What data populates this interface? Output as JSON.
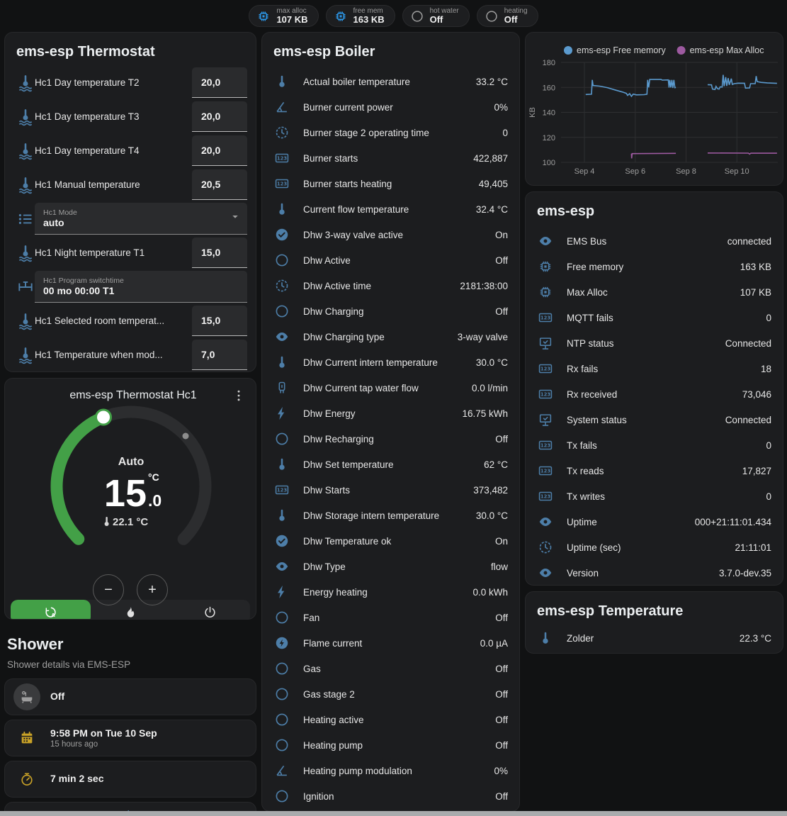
{
  "colors": {
    "icon_blue": "#4d7ea8",
    "chip_blue": "#2d9cf0",
    "icon_grey": "#9e9e9e",
    "amber": "#c9a227",
    "green": "#43a047",
    "chart_blue": "#5b9ace",
    "chart_purple": "#9d5aa0"
  },
  "topbar": {
    "badges": [
      {
        "icon": "chip",
        "icon_color": "#2d9cf0",
        "label": "max alloc",
        "value": "107 KB"
      },
      {
        "icon": "chip",
        "icon_color": "#2d9cf0",
        "label": "free mem",
        "value": "163 KB"
      },
      {
        "icon": "circle",
        "icon_color": "#9e9e9e",
        "label": "hot water",
        "value": "Off"
      },
      {
        "icon": "circle",
        "icon_color": "#9e9e9e",
        "label": "heating",
        "value": "Off"
      }
    ]
  },
  "thermostat_card": {
    "title": "ems-esp Thermostat",
    "rows": [
      {
        "type": "number",
        "icon": "thermometer-waves",
        "label": "Hc1 Day temperature T2",
        "value": "20,0"
      },
      {
        "type": "number",
        "icon": "thermometer-waves",
        "label": "Hc1 Day temperature T3",
        "value": "20,0"
      },
      {
        "type": "number",
        "icon": "thermometer-waves",
        "label": "Hc1 Day temperature T4",
        "value": "20,0"
      },
      {
        "type": "number",
        "icon": "thermometer-waves",
        "label": "Hc1 Manual temperature",
        "value": "20,5"
      },
      {
        "type": "select",
        "icon": "list",
        "label": "Hc1 Mode",
        "value": "auto"
      },
      {
        "type": "number",
        "icon": "thermometer-waves",
        "label": "Hc1 Night temperature T1",
        "value": "15,0"
      },
      {
        "type": "textfield",
        "icon": "valve",
        "label": "Hc1 Program switchtime",
        "value": "00 mo 00:00 T1"
      },
      {
        "type": "number",
        "icon": "thermometer-waves",
        "label": "Hc1 Selected room temperat...",
        "value": "15,0"
      },
      {
        "type": "number",
        "icon": "thermometer-waves",
        "label": "Hc1 Temperature when mod...",
        "value": "7,0"
      }
    ]
  },
  "hc1_card": {
    "title": "ems-esp Thermostat Hc1",
    "mode_label": "Auto",
    "target_int": "15",
    "target_dec": ".0",
    "target_unit": "°C",
    "current_temp": "22.1 °C",
    "minus_label": "−",
    "plus_label": "+",
    "modes": [
      {
        "name": "auto",
        "icon": "auto",
        "active": true
      },
      {
        "name": "heat",
        "icon": "fire",
        "active": false
      },
      {
        "name": "off",
        "icon": "power",
        "active": false
      }
    ]
  },
  "shower": {
    "title": "Shower",
    "subtitle": "Shower details via EMS-ESP",
    "entries": [
      {
        "icon": "bathtub",
        "icon_color": "#9e9e9e",
        "circle_bg": "#3a3b3d",
        "primary": "Off",
        "secondary": ""
      },
      {
        "icon": "calendar",
        "icon_color": "#c9a227",
        "circle_bg": "",
        "primary": "9:58 PM on Tue 10 Sep",
        "secondary": "15 hours ago"
      },
      {
        "icon": "timer",
        "icon_color": "#c9a227",
        "circle_bg": "",
        "primary": "7 min 2 sec",
        "secondary": ""
      }
    ],
    "partial_icon": "snowflake-alert"
  },
  "boiler_card": {
    "title": "ems-esp Boiler",
    "rows": [
      {
        "icon": "thermometer",
        "label": "Actual boiler temperature",
        "value": "33.2 °C"
      },
      {
        "icon": "angle",
        "label": "Burner current power",
        "value": "0%"
      },
      {
        "icon": "clock",
        "label": "Burner stage 2 operating time",
        "value": "0"
      },
      {
        "icon": "counter",
        "label": "Burner starts",
        "value": "422,887"
      },
      {
        "icon": "counter",
        "label": "Burner starts heating",
        "value": "49,405"
      },
      {
        "icon": "thermometer",
        "label": "Current flow temperature",
        "value": "32.4 °C"
      },
      {
        "icon": "check-circle",
        "label": "Dhw 3-way valve active",
        "value": "On"
      },
      {
        "icon": "circle",
        "label": "Dhw Active",
        "value": "Off"
      },
      {
        "icon": "clock",
        "label": "Dhw Active time",
        "value": "2181:38:00"
      },
      {
        "icon": "circle",
        "label": "Dhw Charging",
        "value": "Off"
      },
      {
        "icon": "eye",
        "label": "Dhw Charging type",
        "value": "3-way valve"
      },
      {
        "icon": "thermometer",
        "label": "Dhw Current intern temperature",
        "value": "30.0 °C"
      },
      {
        "icon": "pump",
        "label": "Dhw Current tap water flow",
        "value": "0.0 l/min"
      },
      {
        "icon": "flash",
        "label": "Dhw Energy",
        "value": "16.75 kWh"
      },
      {
        "icon": "circle",
        "label": "Dhw Recharging",
        "value": "Off"
      },
      {
        "icon": "thermometer",
        "label": "Dhw Set temperature",
        "value": "62 °C"
      },
      {
        "icon": "counter",
        "label": "Dhw Starts",
        "value": "373,482"
      },
      {
        "icon": "thermometer",
        "label": "Dhw Storage intern temperature",
        "value": "30.0 °C"
      },
      {
        "icon": "check-circle",
        "label": "Dhw Temperature ok",
        "value": "On"
      },
      {
        "icon": "eye",
        "label": "Dhw Type",
        "value": "flow"
      },
      {
        "icon": "flash",
        "label": "Energy heating",
        "value": "0.0 kWh"
      },
      {
        "icon": "circle",
        "label": "Fan",
        "value": "Off"
      },
      {
        "icon": "flash-circle",
        "label": "Flame current",
        "value": "0.0 µA"
      },
      {
        "icon": "circle",
        "label": "Gas",
        "value": "Off"
      },
      {
        "icon": "circle",
        "label": "Gas stage 2",
        "value": "Off"
      },
      {
        "icon": "circle",
        "label": "Heating active",
        "value": "Off"
      },
      {
        "icon": "circle",
        "label": "Heating pump",
        "value": "Off"
      },
      {
        "icon": "angle",
        "label": "Heating pump modulation",
        "value": "0%"
      },
      {
        "icon": "circle",
        "label": "Ignition",
        "value": "Off"
      }
    ]
  },
  "chart_data": {
    "type": "line",
    "title": "",
    "ylabel": "KB",
    "ylim": [
      100,
      180
    ],
    "yticks": [
      100,
      120,
      140,
      160,
      180
    ],
    "xlim": [
      3.08,
      11.61
    ],
    "xticks": [
      {
        "x": 4,
        "label": "Sep 4"
      },
      {
        "x": 6,
        "label": "Sep 6"
      },
      {
        "x": 8,
        "label": "Sep 8"
      },
      {
        "x": 10,
        "label": "Sep 10"
      }
    ],
    "grid": true,
    "legend_position": "top",
    "series": [
      {
        "name": "ems-esp Free memory",
        "color": "#5b9ace",
        "segments": [
          [
            [
              4.05,
              154.3
            ],
            [
              4.28,
              154.5
            ],
            [
              4.31,
              166
            ],
            [
              4.34,
              161.5
            ],
            [
              4.6,
              161
            ],
            [
              4.9,
              159.8
            ],
            [
              5.2,
              158
            ],
            [
              5.5,
              156.3
            ],
            [
              5.65,
              155.2
            ],
            [
              5.7,
              153.6
            ],
            [
              5.78,
              155
            ],
            [
              5.85,
              152.8
            ],
            [
              5.92,
              154.6
            ],
            [
              6.05,
              154
            ],
            [
              6.35,
              154.2
            ],
            [
              6.46,
              154.5
            ],
            [
              6.49,
              166
            ],
            [
              6.53,
              160
            ],
            [
              6.57,
              166.3
            ],
            [
              7.02,
              166.3
            ],
            [
              7.06,
              165.8
            ],
            [
              7.3,
              166
            ],
            [
              7.33,
              159.8
            ],
            [
              7.36,
              166
            ],
            [
              7.4,
              159.9
            ],
            [
              7.44,
              166
            ],
            [
              7.48,
              159.6
            ],
            [
              7.52,
              166
            ],
            [
              7.56,
              159.8
            ],
            [
              7.6,
              160
            ]
          ],
          [
            [
              8.85,
              162.2
            ],
            [
              9.0,
              162
            ],
            [
              9.04,
              158.6
            ],
            [
              9.14,
              158.3
            ],
            [
              9.18,
              160.8
            ],
            [
              9.24,
              158.9
            ],
            [
              9.3,
              158.6
            ],
            [
              9.34,
              160.4
            ],
            [
              9.42,
              160.2
            ],
            [
              9.46,
              170
            ],
            [
              9.5,
              161
            ],
            [
              9.56,
              168.2
            ],
            [
              9.6,
              161.2
            ],
            [
              9.66,
              167.4
            ],
            [
              9.7,
              162
            ],
            [
              9.78,
              167
            ],
            [
              9.82,
              162.4
            ],
            [
              9.9,
              163
            ],
            [
              10.05,
              163.4
            ],
            [
              10.3,
              163.3
            ],
            [
              10.34,
              159.4
            ],
            [
              10.5,
              159.6
            ],
            [
              10.54,
              163
            ],
            [
              10.72,
              163
            ],
            [
              10.76,
              169
            ],
            [
              10.8,
              164.6
            ],
            [
              10.95,
              164
            ],
            [
              11.2,
              163.6
            ],
            [
              11.58,
              163.2
            ]
          ]
        ]
      },
      {
        "name": "ems-esp Max Alloc",
        "color": "#9d5aa0",
        "segments": [
          [
            [
              5.85,
              107
            ],
            [
              5.86,
              103.2
            ],
            [
              5.88,
              107
            ],
            [
              7.6,
              107.2
            ]
          ],
          [
            [
              8.85,
              107.5
            ],
            [
              10.45,
              107.4
            ],
            [
              10.5,
              106.6
            ],
            [
              10.55,
              107.4
            ],
            [
              11.58,
              107.3
            ]
          ]
        ]
      }
    ]
  },
  "emsesp_card": {
    "title": "ems-esp",
    "rows": [
      {
        "icon": "eye",
        "label": "EMS Bus",
        "value": "connected"
      },
      {
        "icon": "chip",
        "label": "Free memory",
        "value": "163 KB"
      },
      {
        "icon": "chip",
        "label": "Max Alloc",
        "value": "107 KB"
      },
      {
        "icon": "counter",
        "label": "MQTT fails",
        "value": "0"
      },
      {
        "icon": "network",
        "label": "NTP status",
        "value": "Connected"
      },
      {
        "icon": "counter",
        "label": "Rx fails",
        "value": "18"
      },
      {
        "icon": "counter",
        "label": "Rx received",
        "value": "73,046"
      },
      {
        "icon": "network",
        "label": "System status",
        "value": "Connected"
      },
      {
        "icon": "counter",
        "label": "Tx fails",
        "value": "0"
      },
      {
        "icon": "counter",
        "label": "Tx reads",
        "value": "17,827"
      },
      {
        "icon": "counter",
        "label": "Tx writes",
        "value": "0"
      },
      {
        "icon": "eye",
        "label": "Uptime",
        "value": "000+21:11:01.434"
      },
      {
        "icon": "clock",
        "label": "Uptime (sec)",
        "value": "21:11:01"
      },
      {
        "icon": "eye",
        "label": "Version",
        "value": "3.7.0-dev.35"
      }
    ]
  },
  "temperature_card": {
    "title": "ems-esp Temperature",
    "rows": [
      {
        "icon": "thermometer",
        "label": "Zolder",
        "value": "22.3 °C"
      }
    ]
  }
}
